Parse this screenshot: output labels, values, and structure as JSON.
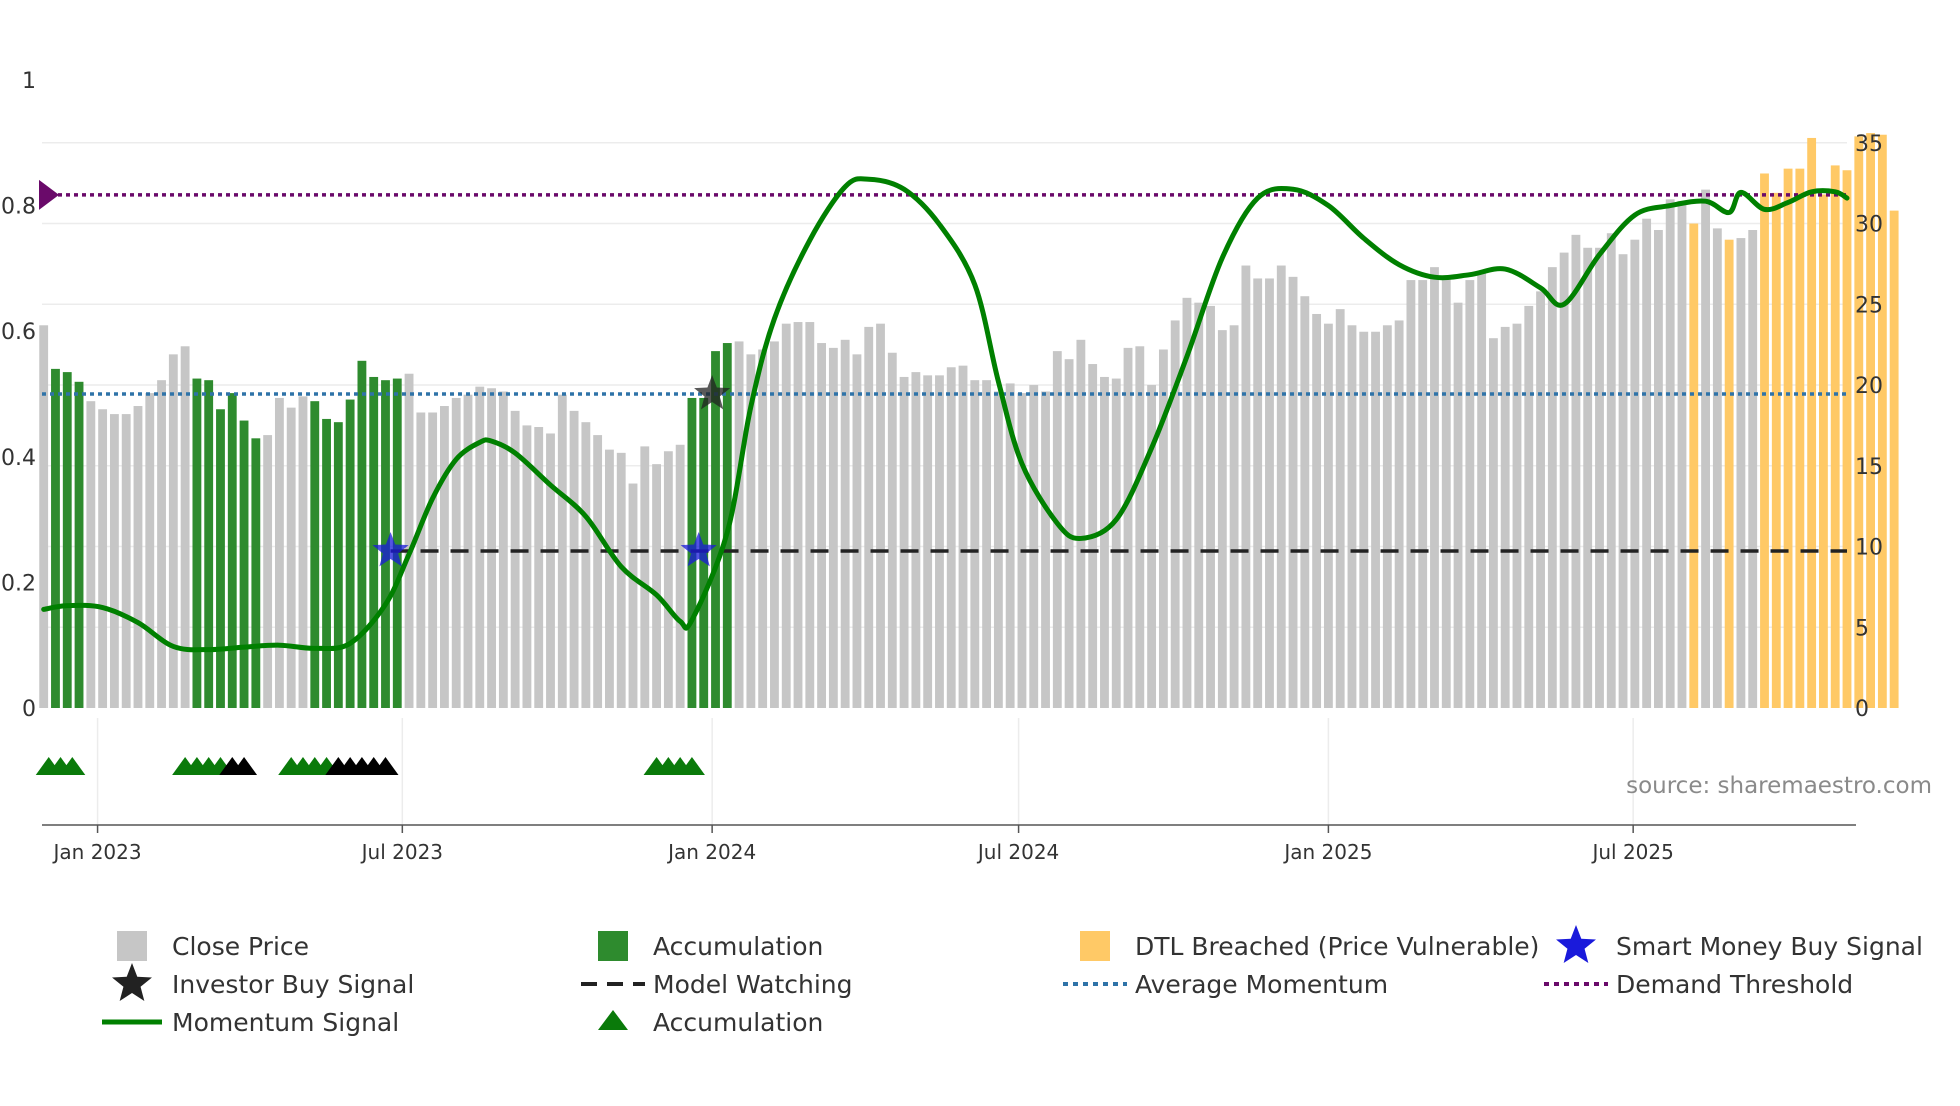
{
  "chart_data": {
    "type": "bar",
    "source_text": "source: sharemaestro.com",
    "colors": {
      "close_price": "#c6c6c6",
      "accumulation": "#2e8b2e",
      "dtl_breached": "#ffc966",
      "momentum": "#008000",
      "average_momentum": "#2f73a8",
      "demand_threshold": "#6a0a6a",
      "model_watching": "#222222",
      "smart_money": "#1a1adb",
      "investor_buy": "#222222",
      "accumulation_marker": "#0a7a0a"
    },
    "left_axis": {
      "ticks": [
        "0",
        "0.2",
        "0.4",
        "0.6",
        "0.8",
        "1"
      ],
      "range": [
        0,
        1
      ]
    },
    "right_axis": {
      "ticks": [
        "0",
        "5",
        "10",
        "15",
        "20",
        "25",
        "30",
        "35"
      ],
      "range": [
        0,
        35
      ]
    },
    "x_axis": {
      "range": [
        "2022-11-29",
        "2025-11-05"
      ],
      "ticks": [
        {
          "label": "Jan 2023",
          "date": "2023-01-01"
        },
        {
          "label": "Jul 2023",
          "date": "2023-07-01"
        },
        {
          "label": "Jan 2024",
          "date": "2024-01-01"
        },
        {
          "label": "Jul 2024",
          "date": "2024-07-01"
        },
        {
          "label": "Jan 2025",
          "date": "2025-01-01"
        },
        {
          "label": "Jul 2025",
          "date": "2025-07-01"
        }
      ]
    },
    "bars": {
      "start_date": "2022-11-30",
      "interval_days": 7,
      "values": [
        23.7,
        21.0,
        20.8,
        20.2,
        19.0,
        18.5,
        18.2,
        18.2,
        18.7,
        19.5,
        20.3,
        21.9,
        22.4,
        20.4,
        20.3,
        18.5,
        19.5,
        17.8,
        16.7,
        16.9,
        19.2,
        18.6,
        19.3,
        19.0,
        17.9,
        17.7,
        19.1,
        21.5,
        20.5,
        20.3,
        20.4,
        20.7,
        18.3,
        18.3,
        18.7,
        19.2,
        19.4,
        19.9,
        19.8,
        19.6,
        18.4,
        17.5,
        17.4,
        17.0,
        19.4,
        18.4,
        17.7,
        16.9,
        16.0,
        15.8,
        13.9,
        16.2,
        15.1,
        15.9,
        16.3,
        19.2,
        19.2,
        22.1,
        22.6,
        22.7,
        21.9,
        22.2,
        22.7,
        23.8,
        23.9,
        23.9,
        22.6,
        22.3,
        22.8,
        21.9,
        23.6,
        23.8,
        22.0,
        20.5,
        20.8,
        20.6,
        20.6,
        21.1,
        21.2,
        20.3,
        20.3,
        19.6,
        20.1,
        19.5,
        20.0,
        19.6,
        22.1,
        21.6,
        22.8,
        21.3,
        20.5,
        20.4,
        22.3,
        22.4,
        20.0,
        22.2,
        24.0,
        25.4,
        25.1,
        24.9,
        23.4,
        23.7,
        27.4,
        26.6,
        26.6,
        27.4,
        26.7,
        25.5,
        24.4,
        23.8,
        24.7,
        23.7,
        23.3,
        23.3,
        23.7,
        24.0,
        26.5,
        26.5,
        27.3,
        26.6,
        25.1,
        26.5,
        27.0,
        22.9,
        23.6,
        23.8,
        24.9,
        25.8,
        27.3,
        28.2,
        29.3,
        28.5,
        28.5,
        29.4,
        28.1,
        29.0,
        30.3,
        29.6,
        31.5,
        31.4,
        30.0,
        32.1,
        29.7,
        29.0,
        29.1,
        29.6,
        33.1,
        31.9,
        33.4,
        33.4,
        35.3,
        31.8,
        33.6,
        33.3,
        35.4,
        35.6,
        35.5,
        30.8
      ],
      "accumulation_ranges": [
        [
          1,
          3
        ],
        [
          13,
          18
        ],
        [
          23,
          30
        ],
        [
          55,
          58
        ]
      ],
      "dtl_breached_ranges": [
        [
          140,
          140
        ],
        [
          143,
          143
        ],
        [
          146,
          158
        ]
      ]
    },
    "series": [
      {
        "name": "Momentum Signal",
        "axis": "left",
        "type": "line",
        "points": [
          [
            "2022-11-30",
            0.157
          ],
          [
            "2022-12-14",
            0.163
          ],
          [
            "2023-01-04",
            0.16
          ],
          [
            "2023-01-25",
            0.136
          ],
          [
            "2023-02-15",
            0.098
          ],
          [
            "2023-03-08",
            0.093
          ],
          [
            "2023-03-29",
            0.097
          ],
          [
            "2023-04-19",
            0.1
          ],
          [
            "2023-05-10",
            0.095
          ],
          [
            "2023-05-31",
            0.103
          ],
          [
            "2023-06-21",
            0.165
          ],
          [
            "2023-07-05",
            0.245
          ],
          [
            "2023-07-19",
            0.334
          ],
          [
            "2023-08-02",
            0.396
          ],
          [
            "2023-08-16",
            0.423
          ],
          [
            "2023-08-23",
            0.425
          ],
          [
            "2023-09-06",
            0.406
          ],
          [
            "2023-09-27",
            0.355
          ],
          [
            "2023-10-18",
            0.305
          ],
          [
            "2023-11-08",
            0.225
          ],
          [
            "2023-11-29",
            0.18
          ],
          [
            "2023-12-13",
            0.138
          ],
          [
            "2023-12-20",
            0.14
          ],
          [
            "2024-01-10",
            0.28
          ],
          [
            "2024-01-24",
            0.48
          ],
          [
            "2024-02-07",
            0.62
          ],
          [
            "2024-02-28",
            0.745
          ],
          [
            "2024-03-20",
            0.83
          ],
          [
            "2024-04-03",
            0.842
          ],
          [
            "2024-04-24",
            0.826
          ],
          [
            "2024-05-15",
            0.77
          ],
          [
            "2024-06-05",
            0.674
          ],
          [
            "2024-06-19",
            0.52
          ],
          [
            "2024-07-03",
            0.389
          ],
          [
            "2024-07-24",
            0.294
          ],
          [
            "2024-08-07",
            0.27
          ],
          [
            "2024-08-28",
            0.3
          ],
          [
            "2024-09-18",
            0.414
          ],
          [
            "2024-10-09",
            0.56
          ],
          [
            "2024-10-30",
            0.717
          ],
          [
            "2024-11-20",
            0.812
          ],
          [
            "2024-12-11",
            0.826
          ],
          [
            "2025-01-01",
            0.8
          ],
          [
            "2025-01-22",
            0.748
          ],
          [
            "2025-02-12",
            0.706
          ],
          [
            "2025-03-05",
            0.686
          ],
          [
            "2025-03-26",
            0.69
          ],
          [
            "2025-04-16",
            0.699
          ],
          [
            "2025-05-07",
            0.669
          ],
          [
            "2025-05-21",
            0.643
          ],
          [
            "2025-06-11",
            0.722
          ],
          [
            "2025-07-02",
            0.785
          ],
          [
            "2025-07-23",
            0.8
          ],
          [
            "2025-08-13",
            0.807
          ],
          [
            "2025-08-27",
            0.789
          ],
          [
            "2025-09-03",
            0.821
          ],
          [
            "2025-09-17",
            0.794
          ],
          [
            "2025-10-01",
            0.805
          ],
          [
            "2025-10-15",
            0.822
          ],
          [
            "2025-10-29",
            0.822
          ],
          [
            "2025-11-05",
            0.812
          ]
        ]
      },
      {
        "name": "Average Momentum",
        "axis": "left",
        "type": "hline",
        "value": 0.5
      },
      {
        "name": "Demand Threshold",
        "axis": "left",
        "type": "hline",
        "value": 0.817
      },
      {
        "name": "Model Watching",
        "axis": "left",
        "type": "dashed-line",
        "value": 0.25,
        "from": "2023-06-24",
        "to": "2025-11-05"
      }
    ],
    "markers": {
      "smart_money_buy": [
        {
          "date": "2023-06-24",
          "value": 0.25
        },
        {
          "date": "2023-12-24",
          "value": 0.25
        }
      ],
      "investor_buy": [
        {
          "date": "2024-01-01",
          "value": 0.5
        }
      ],
      "accumulation_triangles": [
        "2022-12-03",
        "2022-12-10",
        "2022-12-17",
        "2023-02-22",
        "2023-03-01",
        "2023-03-08",
        "2023-03-15",
        "2023-04-26",
        "2023-05-03",
        "2023-05-10",
        "2023-05-17",
        "2023-11-29",
        "2023-12-06",
        "2023-12-13",
        "2023-12-20"
      ],
      "investor_triangles": [
        "2023-03-22",
        "2023-03-29",
        "2023-05-24",
        "2023-05-31",
        "2023-06-07",
        "2023-06-14",
        "2023-06-21"
      ]
    },
    "legend": [
      {
        "label": "Close Price",
        "symbol": "square",
        "color_key": "close_price"
      },
      {
        "label": "Accumulation",
        "symbol": "square",
        "color_key": "accumulation"
      },
      {
        "label": "DTL Breached (Price Vulnerable)",
        "symbol": "square",
        "color_key": "dtl_breached"
      },
      {
        "label": "Smart Money Buy Signal",
        "symbol": "star",
        "color_key": "smart_money"
      },
      {
        "label": "Investor Buy Signal",
        "symbol": "star",
        "color_key": "investor_buy"
      },
      {
        "label": "Model Watching",
        "symbol": "dash",
        "color_key": "model_watching"
      },
      {
        "label": "Average Momentum",
        "symbol": "dot",
        "color_key": "average_momentum"
      },
      {
        "label": "Demand Threshold",
        "symbol": "dot",
        "color_key": "demand_threshold"
      },
      {
        "label": "Momentum Signal",
        "symbol": "line",
        "color_key": "momentum"
      },
      {
        "label": "Accumulation",
        "symbol": "triangle",
        "color_key": "accumulation_marker"
      }
    ]
  }
}
